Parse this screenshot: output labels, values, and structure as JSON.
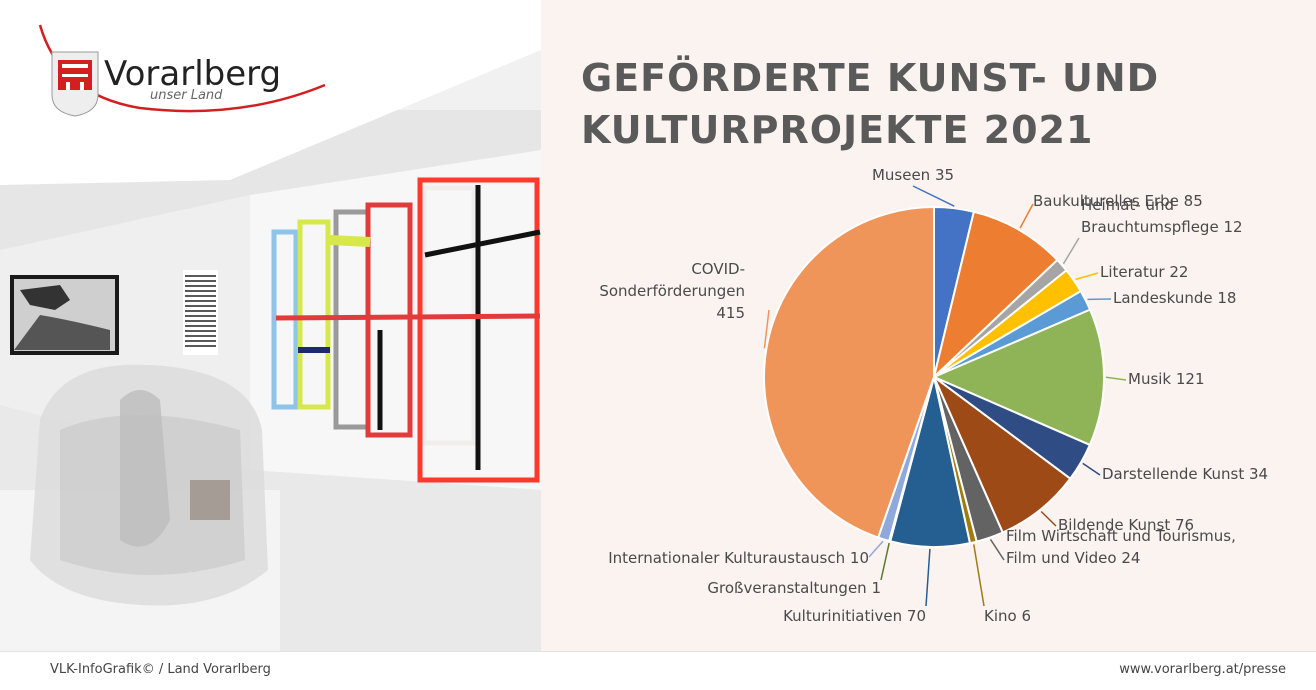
{
  "brand": {
    "logo_text": "Vorarlberg",
    "logo_tagline": "unser Land"
  },
  "title_lines": [
    "GEFÖRDERTE KUNST- UND",
    "KULTURPROJEKTE 2021"
  ],
  "footer": {
    "left": "VLK-InfoGrafik©   /   Land Vorarlberg",
    "right": "www.vorarlberg.at/presse"
  },
  "chart_data": {
    "type": "pie",
    "title": "GEFÖRDERTE KUNST- UND KULTURPROJEKTE 2021",
    "start_angle_deg": 0,
    "direction": "clockwise",
    "slices": [
      {
        "label": "Museen",
        "value": 35,
        "color": "#4472c4"
      },
      {
        "label": "Baukulturelles Erbe",
        "value": 85,
        "color": "#ed7d31"
      },
      {
        "label": "Heimat- und Brauchtumspflege",
        "value": 12,
        "color": "#a5a5a5"
      },
      {
        "label": "Literatur",
        "value": 22,
        "color": "#ffc000"
      },
      {
        "label": "Landeskunde",
        "value": 18,
        "color": "#5b9bd5"
      },
      {
        "label": "Musik",
        "value": 121,
        "color": "#8fb457"
      },
      {
        "label": "Darstellende Kunst",
        "value": 34,
        "color": "#2f4c85"
      },
      {
        "label": "Bildende Kunst",
        "value": 76,
        "color": "#9e4a17"
      },
      {
        "label": "Film Wirtschaft und Tourismus, Film und Video",
        "value": 24,
        "color": "#636363"
      },
      {
        "label": "Kino",
        "value": 6,
        "color": "#a07c10"
      },
      {
        "label": "Kulturinitiativen",
        "value": 70,
        "color": "#255e91"
      },
      {
        "label": "Großveranstaltungen",
        "value": 1,
        "color": "#5a7a2e"
      },
      {
        "label": "Internationaler Kulturaustausch",
        "value": 10,
        "color": "#8fa9dc"
      },
      {
        "label": "COVID-Sonderförderungen",
        "value": 415,
        "color": "#f0955a"
      }
    ],
    "data_labels": [
      [
        "Museen 35"
      ],
      [
        "Baukulturelles Erbe 85"
      ],
      [
        "Heimat- und",
        "Brauchtumspflege 12"
      ],
      [
        "Literatur 22"
      ],
      [
        "Landeskunde 18"
      ],
      [
        "Musik 121"
      ],
      [
        "Darstellende Kunst 34"
      ],
      [
        "Bildende Kunst 76"
      ],
      [
        "Film Wirtschaft und Tourismus,",
        "Film und Video 24"
      ],
      [
        "Kino 6"
      ],
      [
        "Kulturinitiativen 70"
      ],
      [
        "Großveranstaltungen 1"
      ],
      [
        "Internationaler Kulturaustausch 10"
      ],
      [
        "COVID-",
        "Sonderförderungen",
        "415"
      ]
    ]
  }
}
